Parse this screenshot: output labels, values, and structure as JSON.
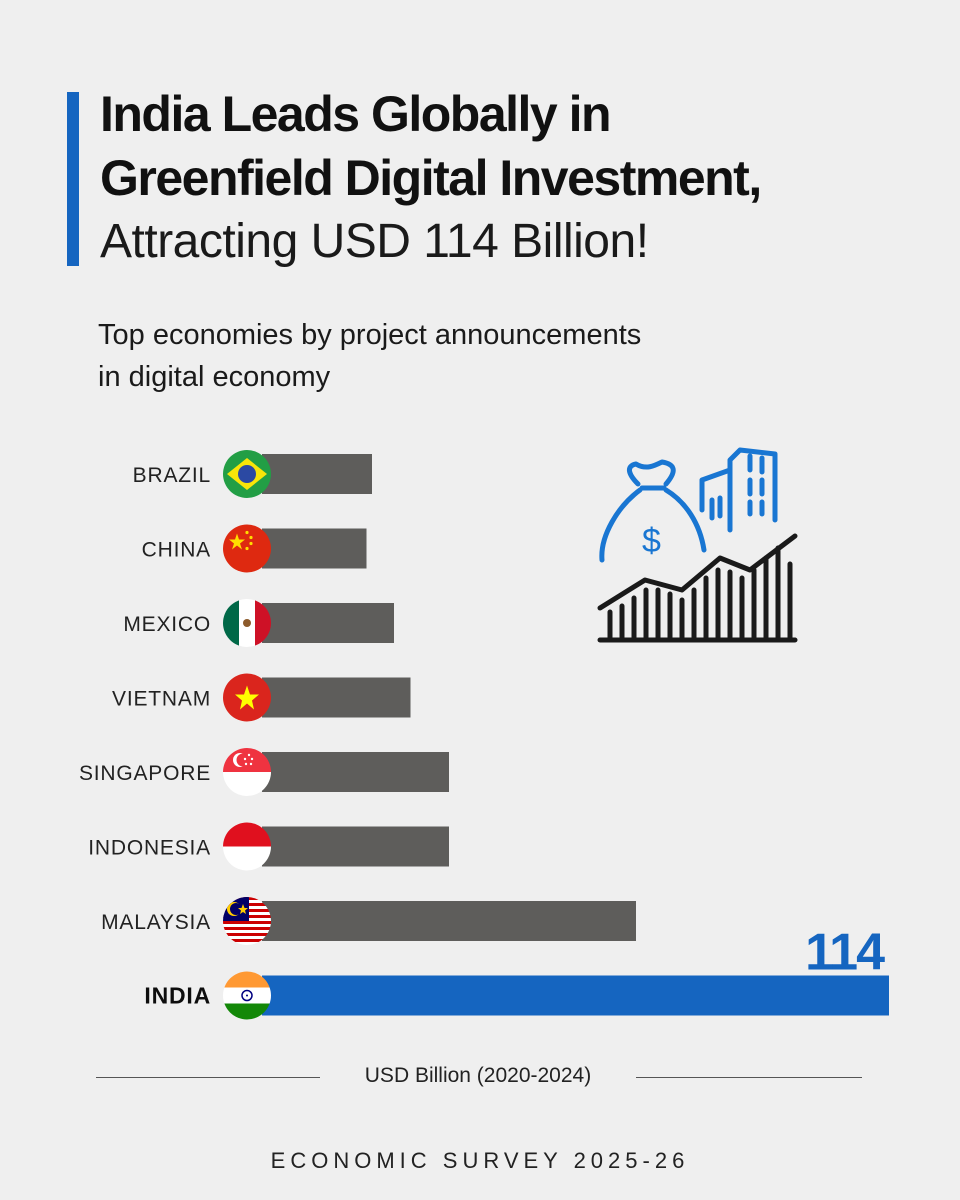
{
  "header": {
    "title_line1": "India Leads Globally in",
    "title_line2": "Greenfield Digital Investment,",
    "title_line3": "Attracting USD 114 Billion!",
    "subtitle_line1": "Top economies by project announcements",
    "subtitle_line2": "in digital economy"
  },
  "chart_data": {
    "type": "bar",
    "orientation": "horizontal",
    "title": "Top economies by project announcements in digital economy",
    "xlabel": "USD Billion (2020-2024)",
    "categories": [
      "BRAZIL",
      "CHINA",
      "MEXICO",
      "VIETNAM",
      "SINGAPORE",
      "INDONESIA",
      "MALAYSIA",
      "INDIA"
    ],
    "values": [
      20,
      19,
      24,
      27,
      34,
      34,
      68,
      114
    ],
    "highlight": "INDIA",
    "highlight_label": "114",
    "xlim": [
      0,
      114
    ],
    "colors": {
      "default": "#5e5d5b",
      "highlight": "#1565c0"
    }
  },
  "axis": {
    "caption": "USD Billion (2020-2024)"
  },
  "footer": {
    "source": "ECONOMIC SURVEY 2025-26"
  },
  "colors": {
    "accent": "#1565c0",
    "background": "#efefef",
    "bar": "#5e5d5b"
  }
}
